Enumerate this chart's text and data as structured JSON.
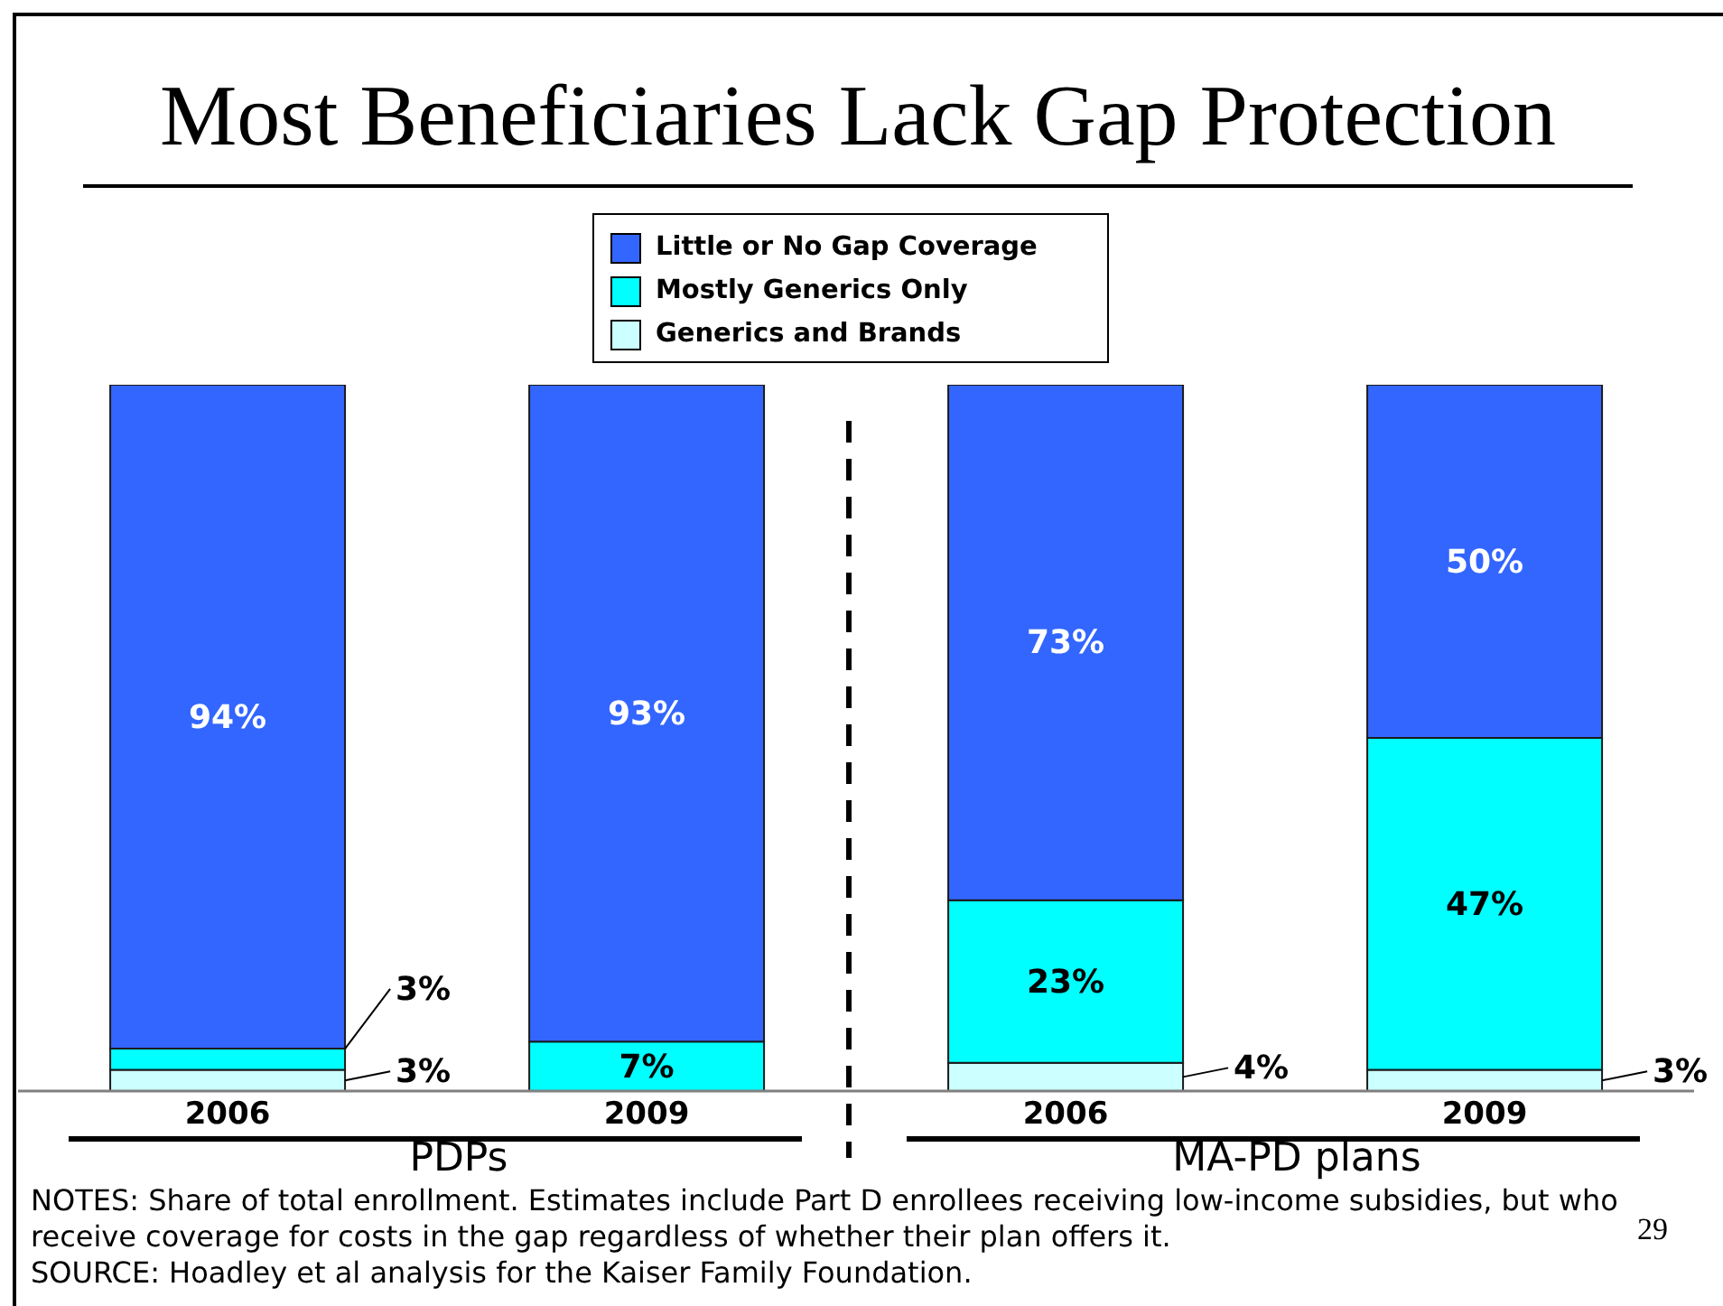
{
  "chart_data": {
    "type": "bar",
    "title": "Most Beneficiaries Lack Gap Protection",
    "categories": [
      "2006",
      "2009",
      "2006",
      "2009"
    ],
    "stacked": true,
    "series": [
      {
        "name": "Generics and Brands",
        "color": "#ccffff",
        "values": [
          3,
          null,
          4,
          3
        ],
        "value_labels": [
          "3%",
          null,
          "4%",
          "3%"
        ]
      },
      {
        "name": "Mostly Generics Only",
        "color": "#00ffff",
        "values": [
          3,
          7,
          23,
          47
        ],
        "value_labels": [
          "3%",
          "7%",
          "23%",
          "47%"
        ]
      },
      {
        "name": "Little or No Gap Coverage",
        "color": "#3366ff",
        "values": [
          94,
          93,
          73,
          50
        ],
        "value_labels": [
          "94%",
          "93%",
          "73%",
          "50%"
        ]
      }
    ],
    "legend": "top",
    "tick_labels": "x",
    "annotations": [
      "PDPs",
      "MA-PD plans",
      "NOTES: Share of total enrollment. Estimates include Part D enrollees receiving low-income subsidies, but who receive coverage for costs in the gap regardless of whether their plan offers it.",
      "SOURCE: Hoadley et al analysis for the Kaiser Family Foundation.",
      "29"
    ]
  }
}
